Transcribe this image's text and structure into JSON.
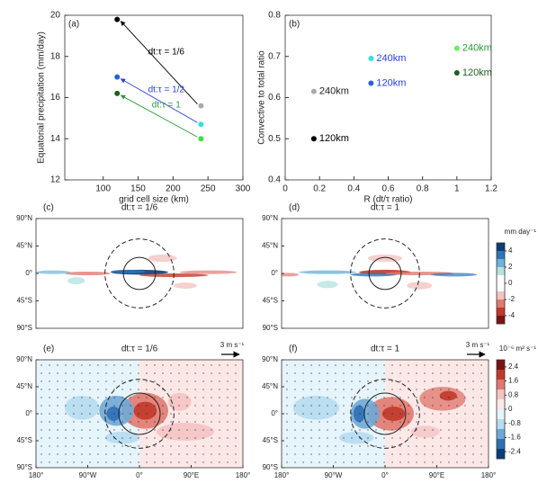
{
  "chart_data": [
    {
      "type": "scatter",
      "panel": "(a)",
      "xlabel": "grid cell size (km)",
      "ylabel": "Equatorial precipitation (mm/day)",
      "xlim": [
        45,
        300
      ],
      "ylim": [
        12,
        20
      ],
      "xticks": [
        100,
        150,
        200,
        250,
        300
      ],
      "yticks": [
        12,
        14,
        16,
        18,
        20
      ],
      "arrows": true,
      "series": [
        {
          "name": "dt:τ = 1/6",
          "color": "#000000",
          "x": [
            240,
            120
          ],
          "values": [
            15.6,
            19.8
          ],
          "colors": [
            "#aaaaaa",
            "#000000"
          ]
        },
        {
          "name": "dt:τ = 1/2",
          "color": "#2b3fd6",
          "x": [
            240,
            120
          ],
          "values": [
            14.7,
            17.0
          ],
          "colors": [
            "#33e0e0",
            "#2b5fe0"
          ]
        },
        {
          "name": "dt:τ = 1",
          "color": "#2a9a3a",
          "x": [
            240,
            120
          ],
          "values": [
            14.0,
            16.2
          ],
          "colors": [
            "#3ee03e",
            "#1e5e1e"
          ]
        }
      ]
    },
    {
      "type": "scatter",
      "panel": "(b)",
      "xlabel": "R (dt/τ ratio)",
      "ylabel": "Convective to total ratio",
      "xlim": [
        0,
        1.2
      ],
      "ylim": [
        0.4,
        0.8
      ],
      "xticks": [
        0,
        0.2,
        0.4,
        0.6,
        0.8,
        1,
        1.2
      ],
      "yticks": [
        0.4,
        0.5,
        0.6,
        0.7,
        0.8
      ],
      "arrows": false,
      "series": [
        {
          "x": [
            0.167,
            0.167,
            0.5,
            0.5,
            1,
            1
          ],
          "values": [
            0.615,
            0.5,
            0.695,
            0.635,
            0.72,
            0.66
          ],
          "colors": [
            "#aaaaaa",
            "#000000",
            "#33e0e0",
            "#2b5fe0",
            "#66ee66",
            "#1e5e1e"
          ],
          "labels": [
            "240km",
            "120km",
            "240km",
            "120km",
            "240km",
            "120km"
          ],
          "label_colors": [
            "#222222",
            "#000000",
            "#2b3fd6",
            "#2b3fd6",
            "#2a9a3a",
            "#1e5e1e"
          ]
        }
      ]
    },
    {
      "type": "map",
      "panel": "(c)",
      "title": "dt:τ = 1/6",
      "xlim": [
        -180,
        180
      ],
      "ylim": [
        -90,
        90
      ],
      "yticks": [
        {
          "value": 90,
          "label": "90°N"
        },
        {
          "value": 45,
          "label": "45°N"
        },
        {
          "value": 0,
          "label": "0°"
        },
        {
          "value": -45,
          "label": "45°S"
        },
        {
          "value": -90,
          "label": "90°S"
        }
      ]
    },
    {
      "type": "map",
      "panel": "(d)",
      "title": "dt:τ = 1",
      "xlim": [
        -180,
        180
      ],
      "ylim": [
        -90,
        90
      ],
      "yticks": [
        {
          "value": 90,
          "label": "90°N"
        },
        {
          "value": 45,
          "label": "45°N"
        },
        {
          "value": 0,
          "label": "0°"
        },
        {
          "value": -45,
          "label": "45°S"
        },
        {
          "value": -90,
          "label": "90°S"
        }
      ],
      "colorbar": {
        "label": "mm day⁻¹",
        "lim": [
          -5,
          5
        ],
        "ticks": [
          4,
          2,
          0,
          -2,
          -4
        ],
        "colors": [
          "#0b3d78",
          "#2f74b5",
          "#6fb3d8",
          "#b6e3e0",
          "#ffffff",
          "#ffffff",
          "#f4c3c3",
          "#e07a70",
          "#c0392b",
          "#7a1414"
        ]
      }
    },
    {
      "type": "map",
      "panel": "(e)",
      "title": "dt:τ = 1/6",
      "vector_scale": "3 m s⁻¹",
      "xlim": [
        -180,
        180
      ],
      "ylim": [
        -90,
        90
      ],
      "yticks": [
        {
          "value": 90,
          "label": "90°N"
        },
        {
          "value": 45,
          "label": "45°N"
        },
        {
          "value": 0,
          "label": "0°"
        },
        {
          "value": -45,
          "label": "45°S"
        },
        {
          "value": -90,
          "label": "90°S"
        }
      ],
      "xticks": [
        {
          "value": -180,
          "label": "180°"
        },
        {
          "value": -90,
          "label": "90°W"
        },
        {
          "value": 0,
          "label": "0°"
        },
        {
          "value": 90,
          "label": "90°E"
        },
        {
          "value": 180,
          "label": "180°"
        }
      ]
    },
    {
      "type": "map",
      "panel": "(f)",
      "title": "dt:τ = 1",
      "vector_scale": "3 m s⁻¹",
      "xlim": [
        -180,
        180
      ],
      "ylim": [
        -90,
        90
      ],
      "yticks": [
        {
          "value": 90,
          "label": "90°N"
        },
        {
          "value": 45,
          "label": "45°N"
        },
        {
          "value": 0,
          "label": "0°"
        },
        {
          "value": -45,
          "label": "45°S"
        },
        {
          "value": -90,
          "label": "90°S"
        }
      ],
      "xticks": [
        {
          "value": -180,
          "label": "180°"
        },
        {
          "value": -90,
          "label": "90°W"
        },
        {
          "value": 0,
          "label": "0°"
        },
        {
          "value": 90,
          "label": "90°E"
        },
        {
          "value": 180,
          "label": "180°"
        }
      ],
      "colorbar": {
        "label": "10⁻⁶ m² s⁻¹",
        "lim": [
          -2.8,
          2.8
        ],
        "ticks": [
          2.4,
          1.6,
          0.8,
          0,
          -0.8,
          -1.6,
          -2.4
        ],
        "colors": [
          "#7a1414",
          "#c0392b",
          "#e07a70",
          "#f4c3c3",
          "#fde8e8",
          "#e6f4fb",
          "#b6dcef",
          "#6fa8d6",
          "#2f6fb5",
          "#0b3d78"
        ]
      }
    }
  ]
}
